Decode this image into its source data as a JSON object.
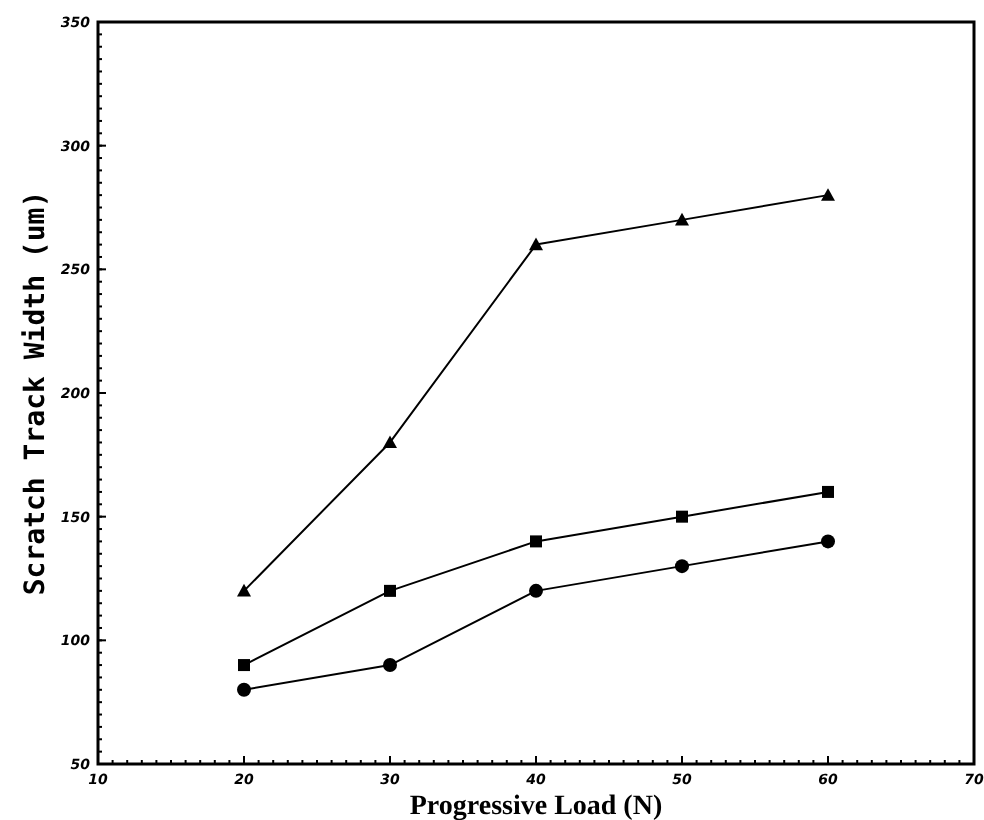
{
  "chart_data": {
    "type": "line",
    "xlabel": "Progressive Load (N)",
    "ylabel": "Scratch Track Width (um)",
    "x": [
      20,
      30,
      40,
      50,
      60
    ],
    "xlim": [
      10,
      70
    ],
    "xticks": [
      10,
      20,
      30,
      40,
      50,
      60,
      70
    ],
    "ylim": [
      50,
      350
    ],
    "yticks": [
      50,
      100,
      150,
      200,
      250,
      300,
      350
    ],
    "grid": false,
    "line_style": "solid",
    "series": [
      {
        "color": "#000000",
        "marker": "triangle",
        "values": [
          120,
          180,
          260,
          270,
          280
        ]
      },
      {
        "color": "#000000",
        "marker": "square",
        "values": [
          90,
          120,
          140,
          150,
          160
        ]
      },
      {
        "color": "#000000",
        "marker": "circle",
        "values": [
          80,
          90,
          120,
          130,
          140
        ]
      }
    ]
  }
}
